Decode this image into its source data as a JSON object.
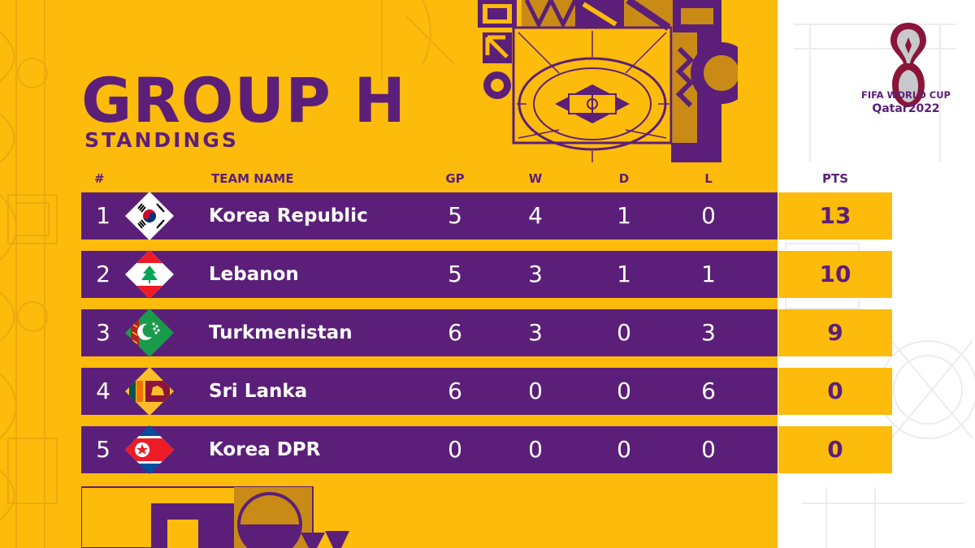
{
  "title": "GROUP H",
  "subtitle": "STANDINGS",
  "headers": {
    "rank": "#",
    "team": "TEAM NAME",
    "gp": "GP",
    "w": "W",
    "d": "D",
    "l": "L",
    "pts": "PTS"
  },
  "rows": [
    {
      "rank": "1",
      "team": "Korea Republic",
      "flag": "korea-republic-flag-icon",
      "gp": "5",
      "w": "4",
      "d": "1",
      "l": "0",
      "pts": "13"
    },
    {
      "rank": "2",
      "team": "Lebanon",
      "flag": "lebanon-flag-icon",
      "gp": "5",
      "w": "3",
      "d": "1",
      "l": "1",
      "pts": "10"
    },
    {
      "rank": "3",
      "team": "Turkmenistan",
      "flag": "turkmenistan-flag-icon",
      "gp": "6",
      "w": "3",
      "d": "0",
      "l": "3",
      "pts": "9"
    },
    {
      "rank": "4",
      "team": "Sri Lanka",
      "flag": "sri-lanka-flag-icon",
      "gp": "6",
      "w": "0",
      "d": "0",
      "l": "6",
      "pts": "0"
    },
    {
      "rank": "5",
      "team": "Korea DPR",
      "flag": "korea-dpr-flag-icon",
      "gp": "0",
      "w": "0",
      "d": "0",
      "l": "0",
      "pts": "0"
    }
  ],
  "logo": {
    "line1": "FIFA WORLD CUP",
    "line2": "Qatar2022",
    "icon": "fifa-world-cup-trophy-logo"
  },
  "colors": {
    "purple": "#5B1F79",
    "yellow": "#FDBB0B",
    "gold": "#C98B16",
    "white": "#FFFFFF"
  }
}
